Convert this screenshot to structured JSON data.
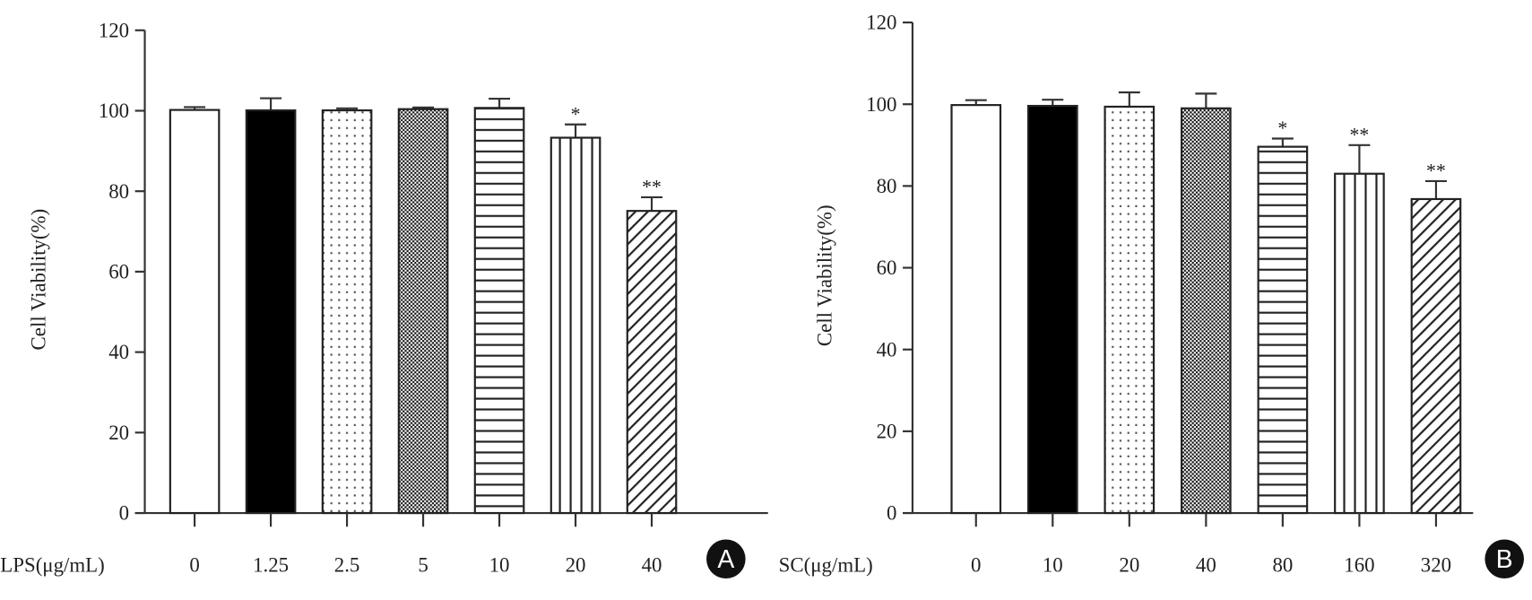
{
  "chart_data": [
    {
      "type": "bar",
      "panel_label": "A",
      "xlabel": "LPS(μg/mL)",
      "ylabel": "Cell Viability(%)",
      "ylim": [
        0,
        120
      ],
      "yticks": [
        "0",
        "20",
        "40",
        "60",
        "80",
        "100",
        "120"
      ],
      "categories": [
        "0",
        "1.25",
        "2.5",
        "5",
        "10",
        "20",
        "40"
      ],
      "values": [
        100.2,
        100.1,
        100.1,
        100.4,
        100.7,
        93.3,
        75.1
      ],
      "errors": [
        0.7,
        3.0,
        0.5,
        0.4,
        2.3,
        3.3,
        3.4
      ],
      "significance": [
        "",
        "",
        "",
        "",
        "",
        "*",
        "**"
      ],
      "fills": [
        "white",
        "black",
        "dots",
        "checker",
        "hlines",
        "vlines",
        "diagonal"
      ],
      "grid": false
    },
    {
      "type": "bar",
      "panel_label": "B",
      "xlabel": "SC(μg/mL)",
      "ylabel": "Cell Viability(%)",
      "ylim": [
        0,
        120
      ],
      "yticks": [
        "0",
        "20",
        "40",
        "60",
        "80",
        "100",
        "120"
      ],
      "categories": [
        "0",
        "10",
        "20",
        "40",
        "80",
        "160",
        "320"
      ],
      "values": [
        99.8,
        99.6,
        99.4,
        99.0,
        89.6,
        83.0,
        76.8
      ],
      "errors": [
        1.2,
        1.5,
        3.5,
        3.6,
        2.0,
        7.0,
        4.4
      ],
      "significance": [
        "",
        "",
        "",
        "",
        "*",
        "**",
        "**"
      ],
      "fills": [
        "white",
        "black",
        "dots",
        "checker",
        "hlines",
        "vlines",
        "diagonal"
      ],
      "grid": false
    }
  ]
}
